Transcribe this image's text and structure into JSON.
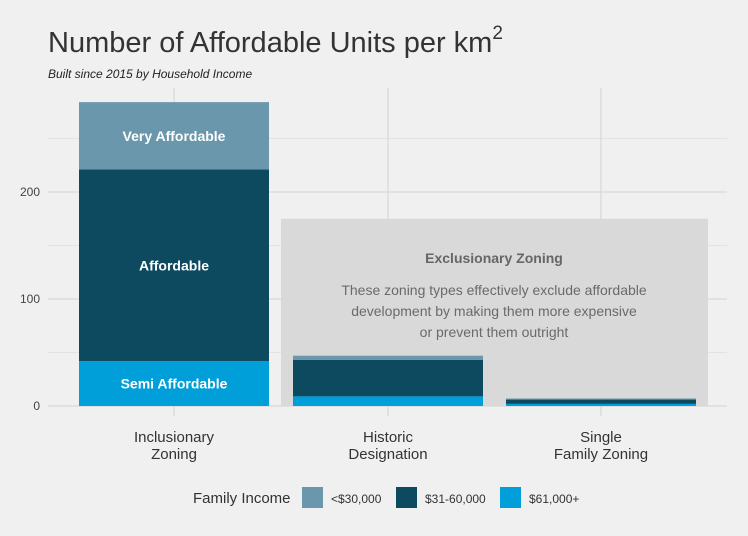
{
  "chart_data": {
    "type": "bar",
    "stacked": true,
    "title": "Number of Affordable Units per km",
    "title_superscript": "2",
    "subtitle": "Built since 2015 by Household Income",
    "categories": [
      [
        "Inclusionary",
        "Zoning"
      ],
      [
        "Historic",
        "Designation"
      ],
      [
        "Single",
        "Family Zoning"
      ]
    ],
    "series": [
      {
        "name": "$61,000+",
        "color": "#009fd9",
        "values": [
          42,
          9,
          2
        ],
        "bar_label": "Semi Affordable"
      },
      {
        "name": "$31-60,000",
        "color": "#0d4a5f",
        "values": [
          179,
          34,
          4
        ],
        "bar_label": "Affordable"
      },
      {
        "name": "<$30,000",
        "color": "#6a97ab",
        "values": [
          63,
          4,
          1
        ],
        "bar_label": "Very Affordable"
      }
    ],
    "yticks": [
      0,
      100,
      200
    ],
    "ylim": [
      0,
      290
    ],
    "grid": true,
    "legend": {
      "title": "Family Income",
      "position": "bottom",
      "order": [
        "<$30,000",
        "$31-60,000",
        "$61,000+"
      ]
    },
    "annotation": {
      "title": "Exclusionary Zoning",
      "lines": [
        "These zoning types effectively exclude affordable",
        "development by making them more expensive",
        "or prevent them outright"
      ],
      "y_top": 175
    }
  }
}
